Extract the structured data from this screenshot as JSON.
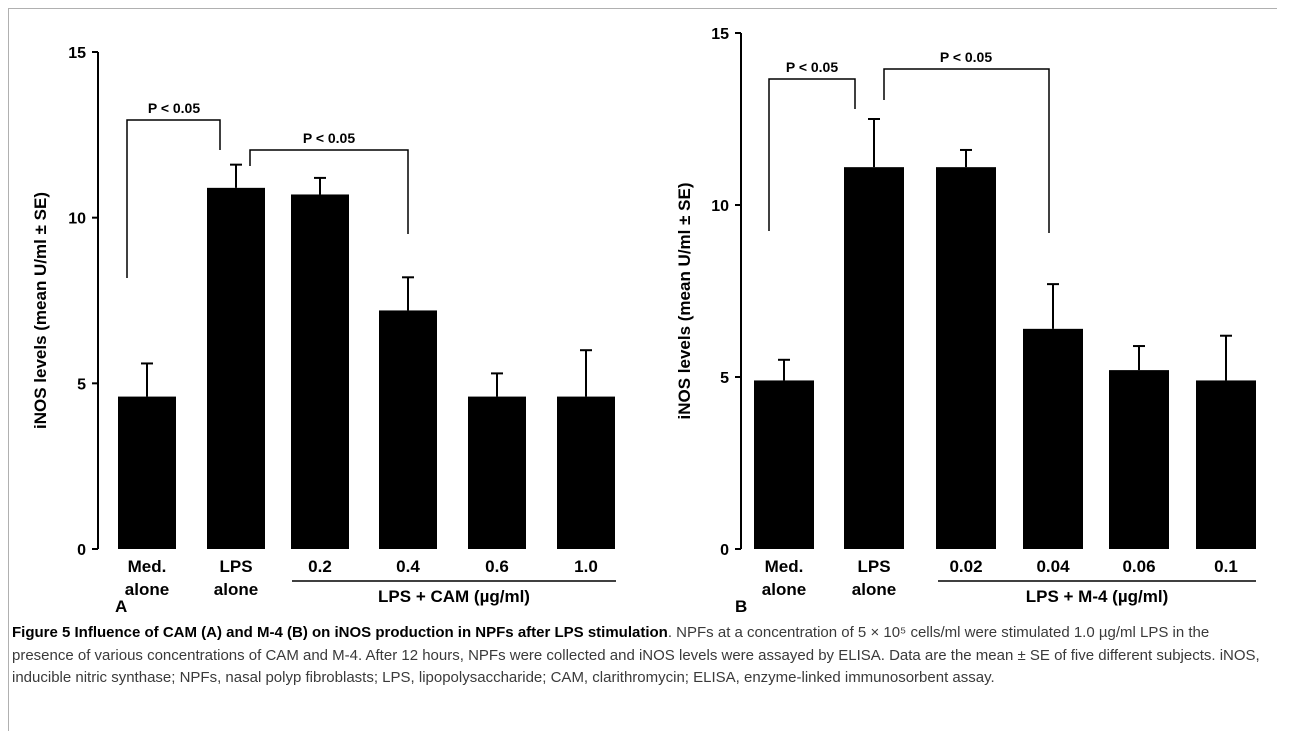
{
  "chart_data": [
    {
      "type": "bar",
      "panel_label": "A",
      "ylabel": "iNOS levels (mean U/ml ± SE)",
      "ylim": [
        0,
        15
      ],
      "yticks": [
        0,
        5,
        10,
        15
      ],
      "categories": [
        [
          "Med.",
          "alone"
        ],
        [
          "LPS",
          "alone"
        ],
        [
          "0.2"
        ],
        [
          "0.4"
        ],
        [
          "0.6"
        ],
        [
          "1.0"
        ]
      ],
      "values": [
        4.6,
        10.9,
        10.7,
        7.2,
        4.6,
        4.6
      ],
      "errors": [
        1.0,
        0.7,
        0.5,
        1.0,
        0.7,
        1.4
      ],
      "group_label": "LPS + CAM (µg/ml)",
      "group_span": [
        2,
        5
      ],
      "significance": [
        {
          "from": 0,
          "to": 1,
          "label": "P < 0.05"
        },
        {
          "from": 1,
          "to": 3,
          "label": "P < 0.05"
        }
      ]
    },
    {
      "type": "bar",
      "panel_label": "B",
      "ylabel": "iNOS levels (mean U/ml ± SE)",
      "ylim": [
        0,
        15
      ],
      "yticks": [
        0,
        5,
        10,
        15
      ],
      "categories": [
        [
          "Med.",
          "alone"
        ],
        [
          "LPS",
          "alone"
        ],
        [
          "0.02"
        ],
        [
          "0.04"
        ],
        [
          "0.06"
        ],
        [
          "0.1"
        ]
      ],
      "values": [
        4.9,
        11.1,
        11.1,
        6.4,
        5.2,
        4.9
      ],
      "errors": [
        0.6,
        1.4,
        0.5,
        1.3,
        0.7,
        1.3
      ],
      "group_label": "LPS + M-4 (µg/ml)",
      "group_span": [
        2,
        5
      ],
      "significance": [
        {
          "from": 0,
          "to": 1,
          "label": "P < 0.05"
        },
        {
          "from": 1,
          "to": 3,
          "label": "P < 0.05"
        }
      ]
    }
  ],
  "caption": {
    "title": "Figure 5 Influence of CAM (A) and M-4 (B) on iNOS production in NPFs after LPS stimulation",
    "body": ". NPFs at a concentration of 5 × 10⁵ cells/ml were stimulated 1.0 µg/ml LPS in the presence of various concentrations of CAM and M-4. After 12 hours, NPFs were collected and iNOS levels were assayed by ELISA. Data are the mean ± SE of five different subjects. iNOS, inducible nitric synthase; NPFs, nasal polyp fibroblasts; LPS, lipopolysaccharide; CAM, clarithromycin; ELISA, enzyme-linked immunosorbent assay."
  }
}
